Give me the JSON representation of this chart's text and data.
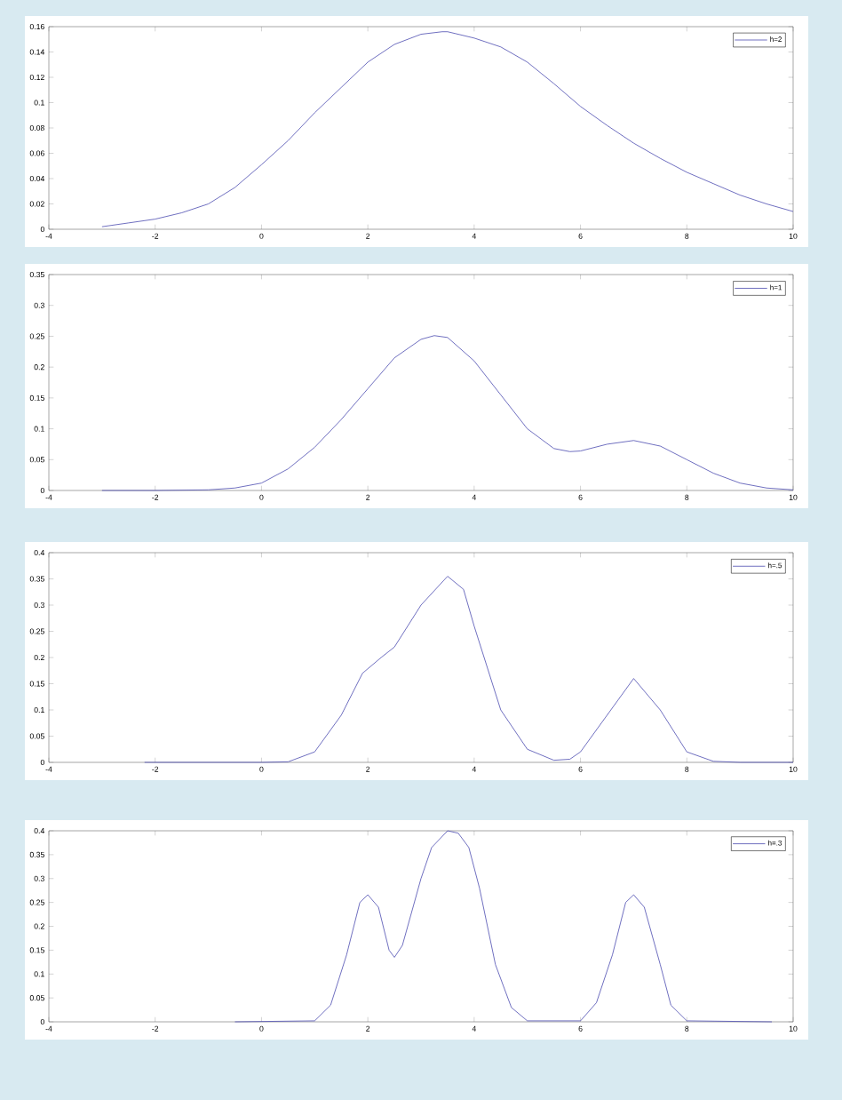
{
  "chart_data": [
    {
      "type": "line",
      "xlim": [
        -4,
        10
      ],
      "ylim": [
        0,
        0.16
      ],
      "xticks": [
        -4,
        -2,
        0,
        2,
        4,
        6,
        8,
        10
      ],
      "yticks": [
        0,
        0.02,
        0.04,
        0.06,
        0.08,
        0.1,
        0.12,
        0.14,
        0.16
      ],
      "legend": "top right",
      "marker": "none",
      "line_style": "solid",
      "series": [
        {
          "name": "h=2",
          "color": "#4b4bb0",
          "x": [
            -3,
            -2.5,
            -2,
            -1.5,
            -1,
            -0.5,
            0,
            0.5,
            1,
            1.5,
            2,
            2.5,
            3,
            3.4,
            3.5,
            4,
            4.5,
            5,
            5.5,
            6,
            6.5,
            7,
            7.5,
            8,
            8.5,
            9,
            9.5,
            10
          ],
          "values": [
            0.002,
            0.005,
            0.008,
            0.013,
            0.02,
            0.033,
            0.051,
            0.07,
            0.092,
            0.112,
            0.132,
            0.146,
            0.154,
            0.156,
            0.156,
            0.151,
            0.144,
            0.132,
            0.115,
            0.097,
            0.082,
            0.068,
            0.056,
            0.045,
            0.036,
            0.027,
            0.02,
            0.014
          ]
        }
      ]
    },
    {
      "type": "line",
      "xlim": [
        -4,
        10
      ],
      "ylim": [
        0,
        0.35
      ],
      "xticks": [
        -4,
        -2,
        0,
        2,
        4,
        6,
        8,
        10
      ],
      "yticks": [
        0,
        0.05,
        0.1,
        0.15,
        0.2,
        0.25,
        0.3,
        0.35
      ],
      "legend": "top right",
      "marker": "none",
      "line_style": "solid",
      "series": [
        {
          "name": "h=1",
          "color": "#4b4bb0",
          "x": [
            -3,
            -2,
            -1,
            -0.5,
            0,
            0.5,
            1,
            1.5,
            2,
            2.5,
            3,
            3.25,
            3.5,
            4,
            4.5,
            5,
            5.5,
            5.8,
            6,
            6.5,
            7,
            7.5,
            8,
            8.5,
            9,
            9.5,
            10
          ],
          "values": [
            0,
            0,
            0.001,
            0.004,
            0.012,
            0.035,
            0.07,
            0.115,
            0.165,
            0.215,
            0.245,
            0.251,
            0.248,
            0.21,
            0.155,
            0.1,
            0.068,
            0.063,
            0.064,
            0.075,
            0.081,
            0.072,
            0.05,
            0.028,
            0.012,
            0.004,
            0.001
          ]
        }
      ]
    },
    {
      "type": "line",
      "xlim": [
        -4,
        10
      ],
      "ylim": [
        0,
        0.4
      ],
      "xticks": [
        -4,
        -2,
        0,
        2,
        4,
        6,
        8,
        10
      ],
      "yticks": [
        0,
        0.05,
        0.1,
        0.15,
        0.2,
        0.25,
        0.3,
        0.35,
        0.4
      ],
      "legend": "top right",
      "marker": "none",
      "line_style": "solid",
      "series": [
        {
          "name": "h=.5",
          "color": "#4b4bb0",
          "x": [
            -2.2,
            0,
            0.5,
            1,
            1.5,
            1.9,
            2.25,
            2.5,
            3,
            3.5,
            3.8,
            4,
            4.5,
            5,
            5.5,
            5.8,
            6,
            6.5,
            7,
            7.5,
            8,
            8.5,
            9,
            10
          ],
          "values": [
            0,
            0,
            0.001,
            0.02,
            0.09,
            0.17,
            0.2,
            0.22,
            0.3,
            0.355,
            0.33,
            0.26,
            0.1,
            0.025,
            0.004,
            0.006,
            0.02,
            0.09,
            0.16,
            0.1,
            0.02,
            0.002,
            0,
            0
          ]
        }
      ]
    },
    {
      "type": "line",
      "xlim": [
        -4,
        10
      ],
      "ylim": [
        0,
        0.4
      ],
      "xticks": [
        -4,
        -2,
        0,
        2,
        4,
        6,
        8,
        10
      ],
      "yticks": [
        0,
        0.05,
        0.1,
        0.15,
        0.2,
        0.25,
        0.3,
        0.35,
        0.4
      ],
      "legend": "top right",
      "marker": "none",
      "line_style": "solid",
      "series": [
        {
          "name": "h=.3",
          "color": "#4b4bb0",
          "x": [
            -0.5,
            1,
            1.3,
            1.6,
            1.85,
            2,
            2.2,
            2.4,
            2.5,
            2.65,
            3,
            3.2,
            3.5,
            3.7,
            3.9,
            4.1,
            4.4,
            4.7,
            5,
            6,
            6.3,
            6.6,
            6.85,
            7,
            7.2,
            7.5,
            7.7,
            8,
            9.6
          ],
          "values": [
            0,
            0.002,
            0.035,
            0.14,
            0.25,
            0.266,
            0.24,
            0.15,
            0.135,
            0.16,
            0.3,
            0.365,
            0.4,
            0.395,
            0.365,
            0.28,
            0.12,
            0.03,
            0.002,
            0.002,
            0.04,
            0.14,
            0.25,
            0.266,
            0.24,
            0.12,
            0.035,
            0.002,
            0
          ]
        }
      ]
    }
  ]
}
